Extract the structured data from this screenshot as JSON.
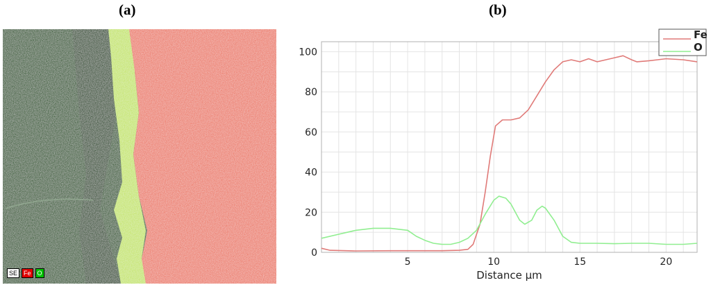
{
  "panel_labels": {
    "left": "(a)",
    "right": "(b)"
  },
  "map": {
    "legend": [
      "SE",
      "Fe",
      "O"
    ],
    "colors": {
      "oxide": "#2f5a2b",
      "oxide_dark": "#253f22",
      "scale": "#c4e466",
      "steel": "#ec7a68",
      "chip_fe": "#e00000",
      "chip_o": "#00c000"
    }
  },
  "chart_data": {
    "type": "line",
    "xlabel": "Distance µm",
    "ylabel": "",
    "xlim": [
      0,
      21.8
    ],
    "ylim": [
      0,
      105
    ],
    "x_ticks": [
      5,
      10,
      15,
      20
    ],
    "y_ticks": [
      0,
      20,
      40,
      60,
      80,
      100
    ],
    "grid": true,
    "legend": {
      "position": "top-right"
    },
    "series": [
      {
        "name": "Fe",
        "color": "#e07a78",
        "points": [
          [
            0,
            2
          ],
          [
            0.5,
            1
          ],
          [
            2,
            0.7
          ],
          [
            4,
            0.8
          ],
          [
            6,
            0.8
          ],
          [
            7,
            0.8
          ],
          [
            8,
            1
          ],
          [
            8.5,
            1.5
          ],
          [
            8.8,
            4
          ],
          [
            9.2,
            14
          ],
          [
            9.5,
            30
          ],
          [
            9.8,
            48
          ],
          [
            10.1,
            63
          ],
          [
            10.5,
            66
          ],
          [
            11,
            66
          ],
          [
            11.5,
            67
          ],
          [
            12,
            71
          ],
          [
            12.5,
            78
          ],
          [
            13,
            85
          ],
          [
            13.5,
            91
          ],
          [
            14,
            95
          ],
          [
            14.5,
            96
          ],
          [
            15,
            95
          ],
          [
            15.5,
            96.5
          ],
          [
            16,
            95
          ],
          [
            17,
            97
          ],
          [
            17.5,
            98
          ],
          [
            18,
            96
          ],
          [
            18.3,
            95
          ],
          [
            19,
            95.5
          ],
          [
            19.5,
            96
          ],
          [
            20,
            96.5
          ],
          [
            21,
            96
          ],
          [
            21.8,
            95
          ]
        ]
      },
      {
        "name": "O",
        "color": "#90ee90",
        "points": [
          [
            0,
            7
          ],
          [
            1,
            9
          ],
          [
            2,
            11
          ],
          [
            3,
            12
          ],
          [
            4,
            12
          ],
          [
            5,
            11
          ],
          [
            5.5,
            8
          ],
          [
            6,
            6
          ],
          [
            6.5,
            4.5
          ],
          [
            7,
            4
          ],
          [
            7.5,
            4
          ],
          [
            8,
            5
          ],
          [
            8.5,
            7
          ],
          [
            9,
            11
          ],
          [
            9.5,
            19
          ],
          [
            10,
            26
          ],
          [
            10.3,
            28
          ],
          [
            10.7,
            27
          ],
          [
            11,
            24
          ],
          [
            11.5,
            16
          ],
          [
            11.8,
            14
          ],
          [
            12.2,
            16
          ],
          [
            12.5,
            21
          ],
          [
            12.8,
            23
          ],
          [
            13,
            22
          ],
          [
            13.5,
            16
          ],
          [
            14,
            8
          ],
          [
            14.5,
            5
          ],
          [
            15,
            4.5
          ],
          [
            16,
            4.5
          ],
          [
            17,
            4.3
          ],
          [
            18,
            4.5
          ],
          [
            19,
            4.5
          ],
          [
            20,
            4
          ],
          [
            21,
            4
          ],
          [
            21.8,
            4.5
          ]
        ]
      }
    ]
  }
}
